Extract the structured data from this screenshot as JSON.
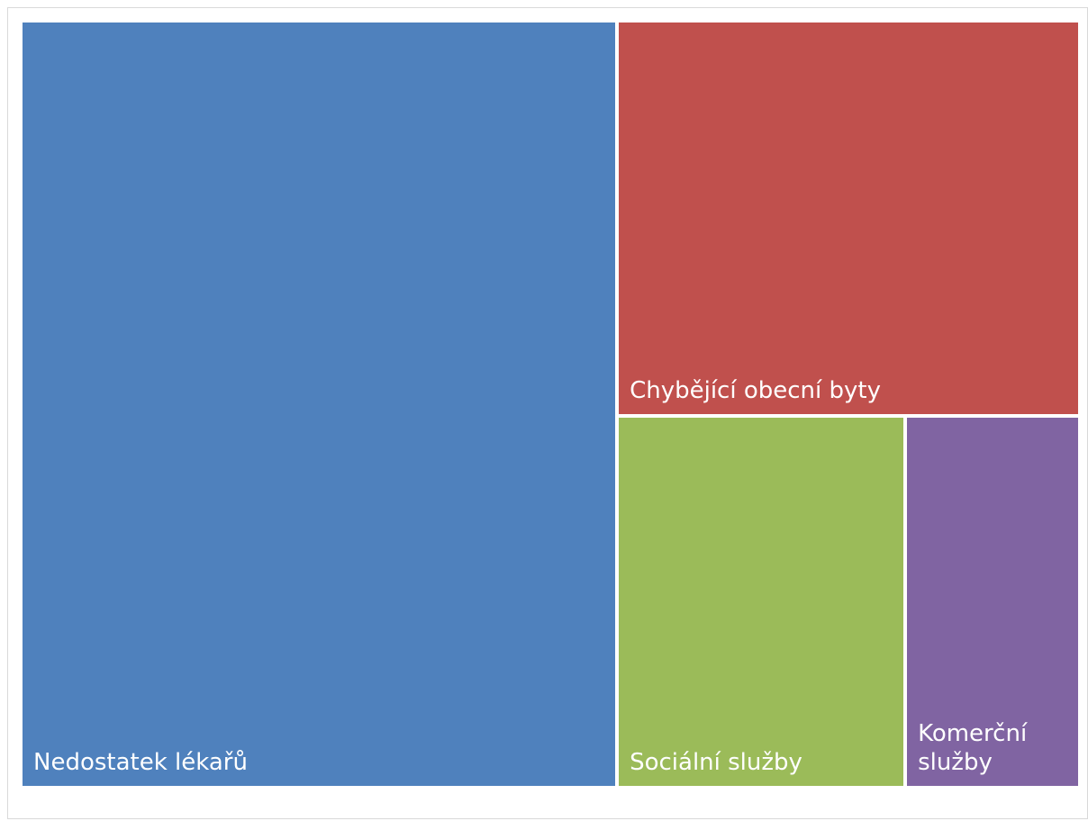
{
  "chart_data": {
    "type": "treemap",
    "title": "",
    "series": [
      {
        "name": "Nedostatek lékařů",
        "value": 56.3,
        "color": "#4f81bd"
      },
      {
        "name": "Chybějící obecní byty",
        "value": 22.5,
        "color": "#c0504d"
      },
      {
        "name": "Sociální služby",
        "value": 13.2,
        "color": "#9bbb59"
      },
      {
        "name": "Komerční služby",
        "value": 8.0,
        "color": "#8064a2"
      }
    ]
  }
}
